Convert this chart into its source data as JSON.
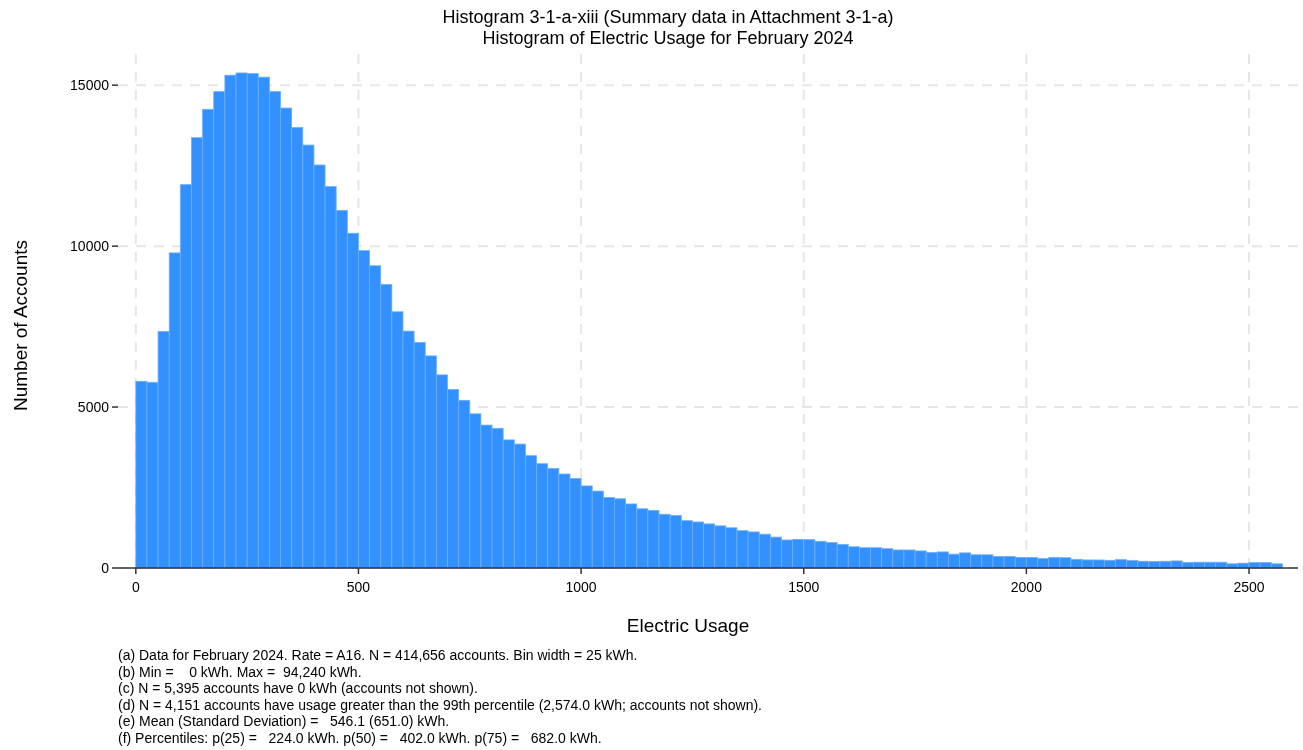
{
  "chart_data": {
    "type": "histogram",
    "title": "Histogram 3-1-a-xiii (Summary data in Attachment 3-1-a)",
    "subtitle": "Histogram of Electric Usage for February 2024",
    "xlabel": "Electric Usage",
    "ylabel": "Number of Accounts",
    "bins": [
      0,
      25,
      50,
      75,
      100,
      125,
      150,
      175,
      200,
      225,
      250,
      275,
      300,
      325,
      350,
      375,
      400,
      425,
      450,
      475,
      500,
      525,
      550,
      575,
      600,
      625,
      650,
      675,
      700,
      725,
      750,
      775,
      800,
      825,
      850,
      875,
      900,
      925,
      950,
      975,
      1000,
      1025,
      1050,
      1075,
      1100,
      1125,
      1150,
      1175,
      1200,
      1225,
      1250,
      1275,
      1300,
      1325,
      1350,
      1375,
      1400,
      1425,
      1450,
      1475,
      1500,
      1525,
      1550,
      1575,
      1600,
      1625,
      1650,
      1675,
      1700,
      1725,
      1750,
      1775,
      1800,
      1825,
      1850,
      1875,
      1900,
      1925,
      1950,
      1975,
      2000,
      2025,
      2050,
      2075,
      2100,
      2125,
      2150,
      2175,
      2200,
      2225,
      2250,
      2275,
      2300,
      2325,
      2350,
      2375,
      2400,
      2425,
      2450,
      2475,
      2500,
      2525,
      2550,
      2575
    ],
    "values": [
      5800,
      5770,
      7350,
      9790,
      11910,
      13370,
      14250,
      14800,
      15310,
      15380,
      15360,
      15250,
      14800,
      14290,
      13690,
      13140,
      12520,
      11850,
      11110,
      10400,
      9860,
      9390,
      8810,
      7960,
      7360,
      7010,
      6590,
      6000,
      5550,
      5210,
      4790,
      4440,
      4340,
      3980,
      3850,
      3490,
      3240,
      3090,
      2920,
      2780,
      2550,
      2390,
      2190,
      2150,
      1990,
      1840,
      1790,
      1670,
      1630,
      1470,
      1430,
      1370,
      1310,
      1250,
      1160,
      1120,
      1050,
      960,
      870,
      890,
      880,
      830,
      790,
      730,
      660,
      630,
      630,
      600,
      560,
      560,
      530,
      480,
      500,
      430,
      470,
      410,
      410,
      360,
      360,
      330,
      330,
      290,
      330,
      320,
      270,
      250,
      250,
      240,
      260,
      230,
      210,
      200,
      210,
      220,
      170,
      180,
      180,
      180,
      130,
      150,
      170,
      170,
      130
    ],
    "color": "#3390ff",
    "xlim": [
      -40,
      2610
    ],
    "xticks": [
      0,
      500,
      1000,
      1500,
      2000,
      2500
    ],
    "ylim": [
      0,
      16000
    ],
    "yticks": [
      0,
      5000,
      10000,
      15000
    ],
    "grid": true,
    "annotations": [
      "(a) Data for February 2024. Rate = A16. N = 414,656 accounts. Bin width = 25 kWh.",
      "(b) Min =    0 kWh. Max =  94,240 kWh.",
      "(c) N = 5,395 accounts have 0 kWh (accounts not shown).",
      "(d) N = 4,151 accounts have usage greater than the 99th percentile (2,574.0 kWh; accounts not shown).",
      "(e) Mean (Standard Deviation) =   546.1 (651.0) kWh.",
      "(f) Percentiles: p(25) =   224.0 kWh. p(50) =   402.0 kWh. p(75) =   682.0 kWh."
    ]
  }
}
